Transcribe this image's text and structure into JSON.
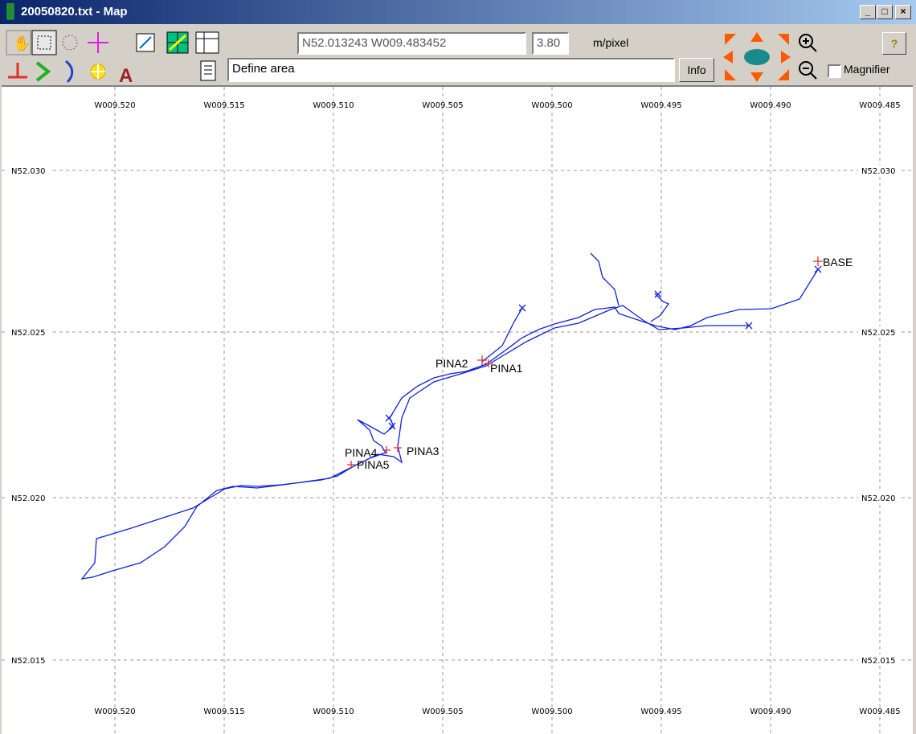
{
  "window": {
    "title": "20050820.txt - Map"
  },
  "toolbar": {
    "coordinates": "N52.013243 W009.483452",
    "scale": "3.80",
    "scale_unit": "m/pixel",
    "status": "Define area",
    "info_button": "Info",
    "magnifier": "Magnifier"
  },
  "map": {
    "longitude_labels": [
      "W009.520",
      "W009.515",
      "W009.510",
      "W009.505",
      "W009.500",
      "W009.495",
      "W009.490",
      "W009.485"
    ],
    "latitude_labels": [
      "N52.030",
      "N52.025",
      "N52.020",
      "N52.015"
    ],
    "waypoints": [
      "BASE",
      "PINA1",
      "PINA2",
      "PINA3",
      "PINA4",
      "PINA5"
    ]
  }
}
